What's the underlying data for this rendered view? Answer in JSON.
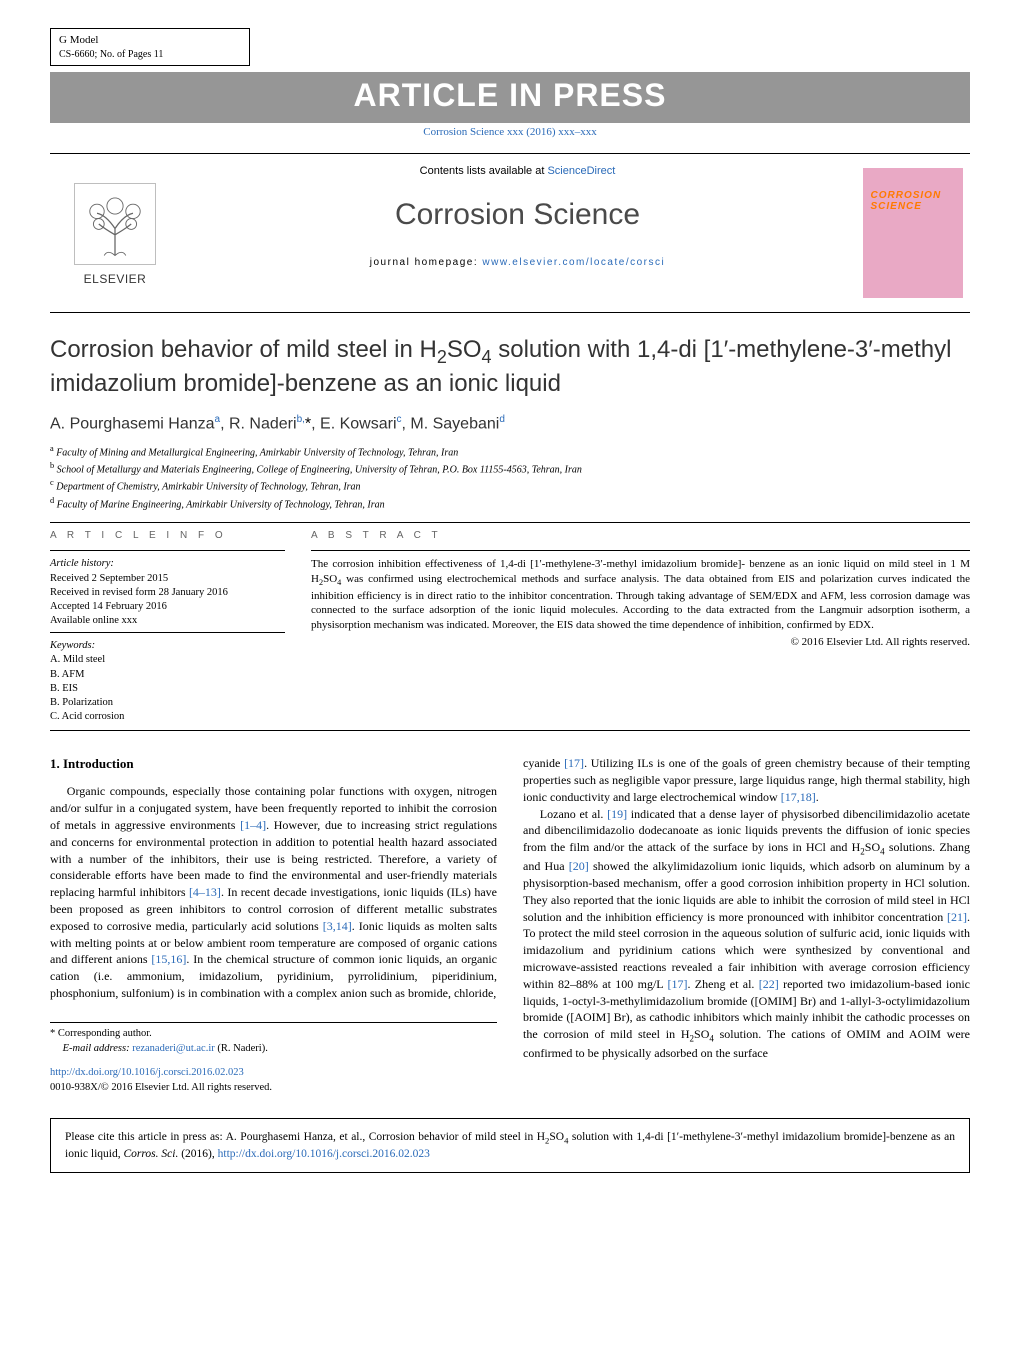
{
  "header": {
    "gmodel": "G Model",
    "csnum": "CS-6660;   No. of Pages 11",
    "aip": "ARTICLE IN PRESS",
    "journal_ref": "Corrosion Science xxx (2016) xxx–xxx"
  },
  "masthead": {
    "elsevier": "ELSEVIER",
    "contents_prefix": "Contents lists available at ",
    "contents_link": "ScienceDirect",
    "journal_name": "Corrosion Science",
    "homepage_prefix": "journal homepage: ",
    "homepage_url": "www.elsevier.com/locate/corsci",
    "cover_title": "CORROSION\nSCIENCE"
  },
  "article": {
    "title_html": "Corrosion behavior of mild steel in H<sub>2</sub>SO<sub>4</sub> solution with 1,4-di [1′-methylene-3′-methyl imidazolium bromide]-benzene as an ionic liquid",
    "authors_html": "A. Pourghasemi Hanza<sup>a</sup>, R. Naderi<sup>b,</sup><span class=\"ast\">*</span>, E. Kowsari<sup>c</sup>, M. Sayebani<sup>d</sup>",
    "affiliations": {
      "a": "Faculty of Mining and Metallurgical Engineering, Amirkabir University of Technology, Tehran, Iran",
      "b": "School of Metallurgy and Materials Engineering, College of Engineering, University of Tehran, P.O. Box 11155-4563, Tehran, Iran",
      "c": "Department of Chemistry, Amirkabir University of Technology, Tehran, Iran",
      "d": "Faculty of Marine Engineering, Amirkabir University of Technology, Tehran, Iran"
    }
  },
  "info": {
    "head": "A R T I C L E   I N F O",
    "history_label": "Article history:",
    "received": "Received 2 September 2015",
    "revised": "Received in revised form 28 January 2016",
    "accepted": "Accepted 14 February 2016",
    "online": "Available online xxx",
    "keywords_label": "Keywords:",
    "keywords": [
      "A. Mild steel",
      "B. AFM",
      "B. EIS",
      "B. Polarization",
      "C. Acid corrosion"
    ]
  },
  "abstract": {
    "head": "A B S T R A C T",
    "text_html": "The corrosion inhibition effectiveness of 1,4-di [1′-methylene-3′-methyl imidazolium bromide]- benzene as an ionic liquid on mild steel in 1 M H<sub>2</sub>SO<sub>4</sub> was confirmed using electrochemical methods and surface analysis. The data obtained from EIS and polarization curves indicated the inhibition efficiency is in direct ratio to the inhibitor concentration. Through taking advantage of SEM/EDX and AFM, less corrosion damage was connected to the surface adsorption of the ionic liquid molecules. According to the data extracted from the Langmuir adsorption isotherm, a physisorption mechanism was indicated. Moreover, the EIS data showed the time dependence of inhibition, confirmed by EDX.",
    "copyright": "© 2016 Elsevier Ltd. All rights reserved."
  },
  "intro": {
    "heading": "1.  Introduction",
    "p1_html": "Organic compounds, especially those containing polar functions with oxygen, nitrogen and/or sulfur in a conjugated system, have been frequently reported to inhibit the corrosion of metals in aggressive environments <span class=\"ref\">[1–4]</span>. However, due to increasing strict regulations and concerns for environmental protection in addition to potential health hazard associated with a number of the inhibitors, their use is being restricted. Therefore, a variety of considerable efforts have been made to find the environmental and user-friendly materials replacing harmful inhibitors <span class=\"ref\">[4–13]</span>. In recent decade investigations, ionic liquids (ILs) have been proposed as green inhibitors to control corrosion of different metallic substrates exposed to corrosive media, particularly acid solutions <span class=\"ref\">[3,14]</span>. Ionic liquids as molten salts with melting points at or below ambient room temperature are composed of organic cations and different anions <span class=\"ref\">[15,16]</span>. In the chemical structure of common ionic liquids, an organic cation (i.e. ammonium, imidazolium, pyridinium, pyrrolidinium, piperidinium, phosphonium, sulfonium) is in combination with a complex anion such as bromide, chloride,",
    "p2_html": "cyanide <span class=\"ref\">[17]</span>. Utilizing ILs is one of the goals of green chemistry because of their tempting properties such as negligible vapor pressure, large liquidus range, high thermal stability, high ionic conductivity and large electrochemical window <span class=\"ref\">[17,18]</span>.",
    "p3_html": "Lozano et al. <span class=\"ref\">[19]</span> indicated that a dense layer of physisorbed dibencilimidazolio acetate and dibencilimidazolio dodecanoate as ionic liquids prevents the diffusion of ionic species from the film and/or the attack of the surface by ions in HCl and H<sub>2</sub>SO<sub>4</sub> solutions. Zhang and Hua <span class=\"ref\">[20]</span> showed the alkylimidazolium ionic liquids, which adsorb on aluminum by a physisorption-based mechanism, offer a good corrosion inhibition property in HCl solution. They also reported that the ionic liquids are able to inhibit the corrosion of mild steel in HCl solution and the inhibition efficiency is more pronounced with inhibitor concentration <span class=\"ref\">[21]</span>. To protect the mild steel corrosion in the aqueous solution of sulfuric acid, ionic liquids with imidazolium and pyridinium cations which were synthesized by conventional and microwave-assisted reactions revealed a fair inhibition with average corrosion efficiency within 82–88% at 100 mg/L <span class=\"ref\">[17]</span>. Zheng et al. <span class=\"ref\">[22]</span> reported two imidazolium-based ionic liquids, 1-octyl-3-methylimidazolium bromide ([OMIM] Br) and 1-allyl-3-octylimidazolium bromide ([AOIM] Br), as cathodic inhibitors which mainly inhibit the cathodic processes on the corrosion of mild steel in H<sub>2</sub>SO<sub>4</sub> solution. The cations of OMIM and AOIM were confirmed to be physically adsorbed on the surface"
  },
  "footnote": {
    "corresponding": "Corresponding author.",
    "email_label": "E-mail address:",
    "email": "rezanaderi@ut.ac.ir",
    "email_after": "(R. Naderi).",
    "doi_url": "http://dx.doi.org/10.1016/j.corsci.2016.02.023",
    "issn_line": "0010-938X/© 2016 Elsevier Ltd. All rights reserved."
  },
  "citebox": {
    "text_html": "Please cite this article in press as: A. Pourghasemi Hanza, et al., Corrosion behavior of mild steel in H<sub>2</sub>SO<sub>4</sub> solution with 1,4-di [1′-methylene-3′-methyl imidazolium bromide]-benzene as an ionic liquid, <i>Corros. Sci.</i> (2016), <a href=\"#\">http://dx.doi.org/10.1016/j.corsci.2016.02.023</a>"
  },
  "colors": {
    "link": "#2a6ab8",
    "banner_bg": "#969696",
    "cover_bg": "#e9a9c5",
    "cover_title": "#ff7a00"
  }
}
